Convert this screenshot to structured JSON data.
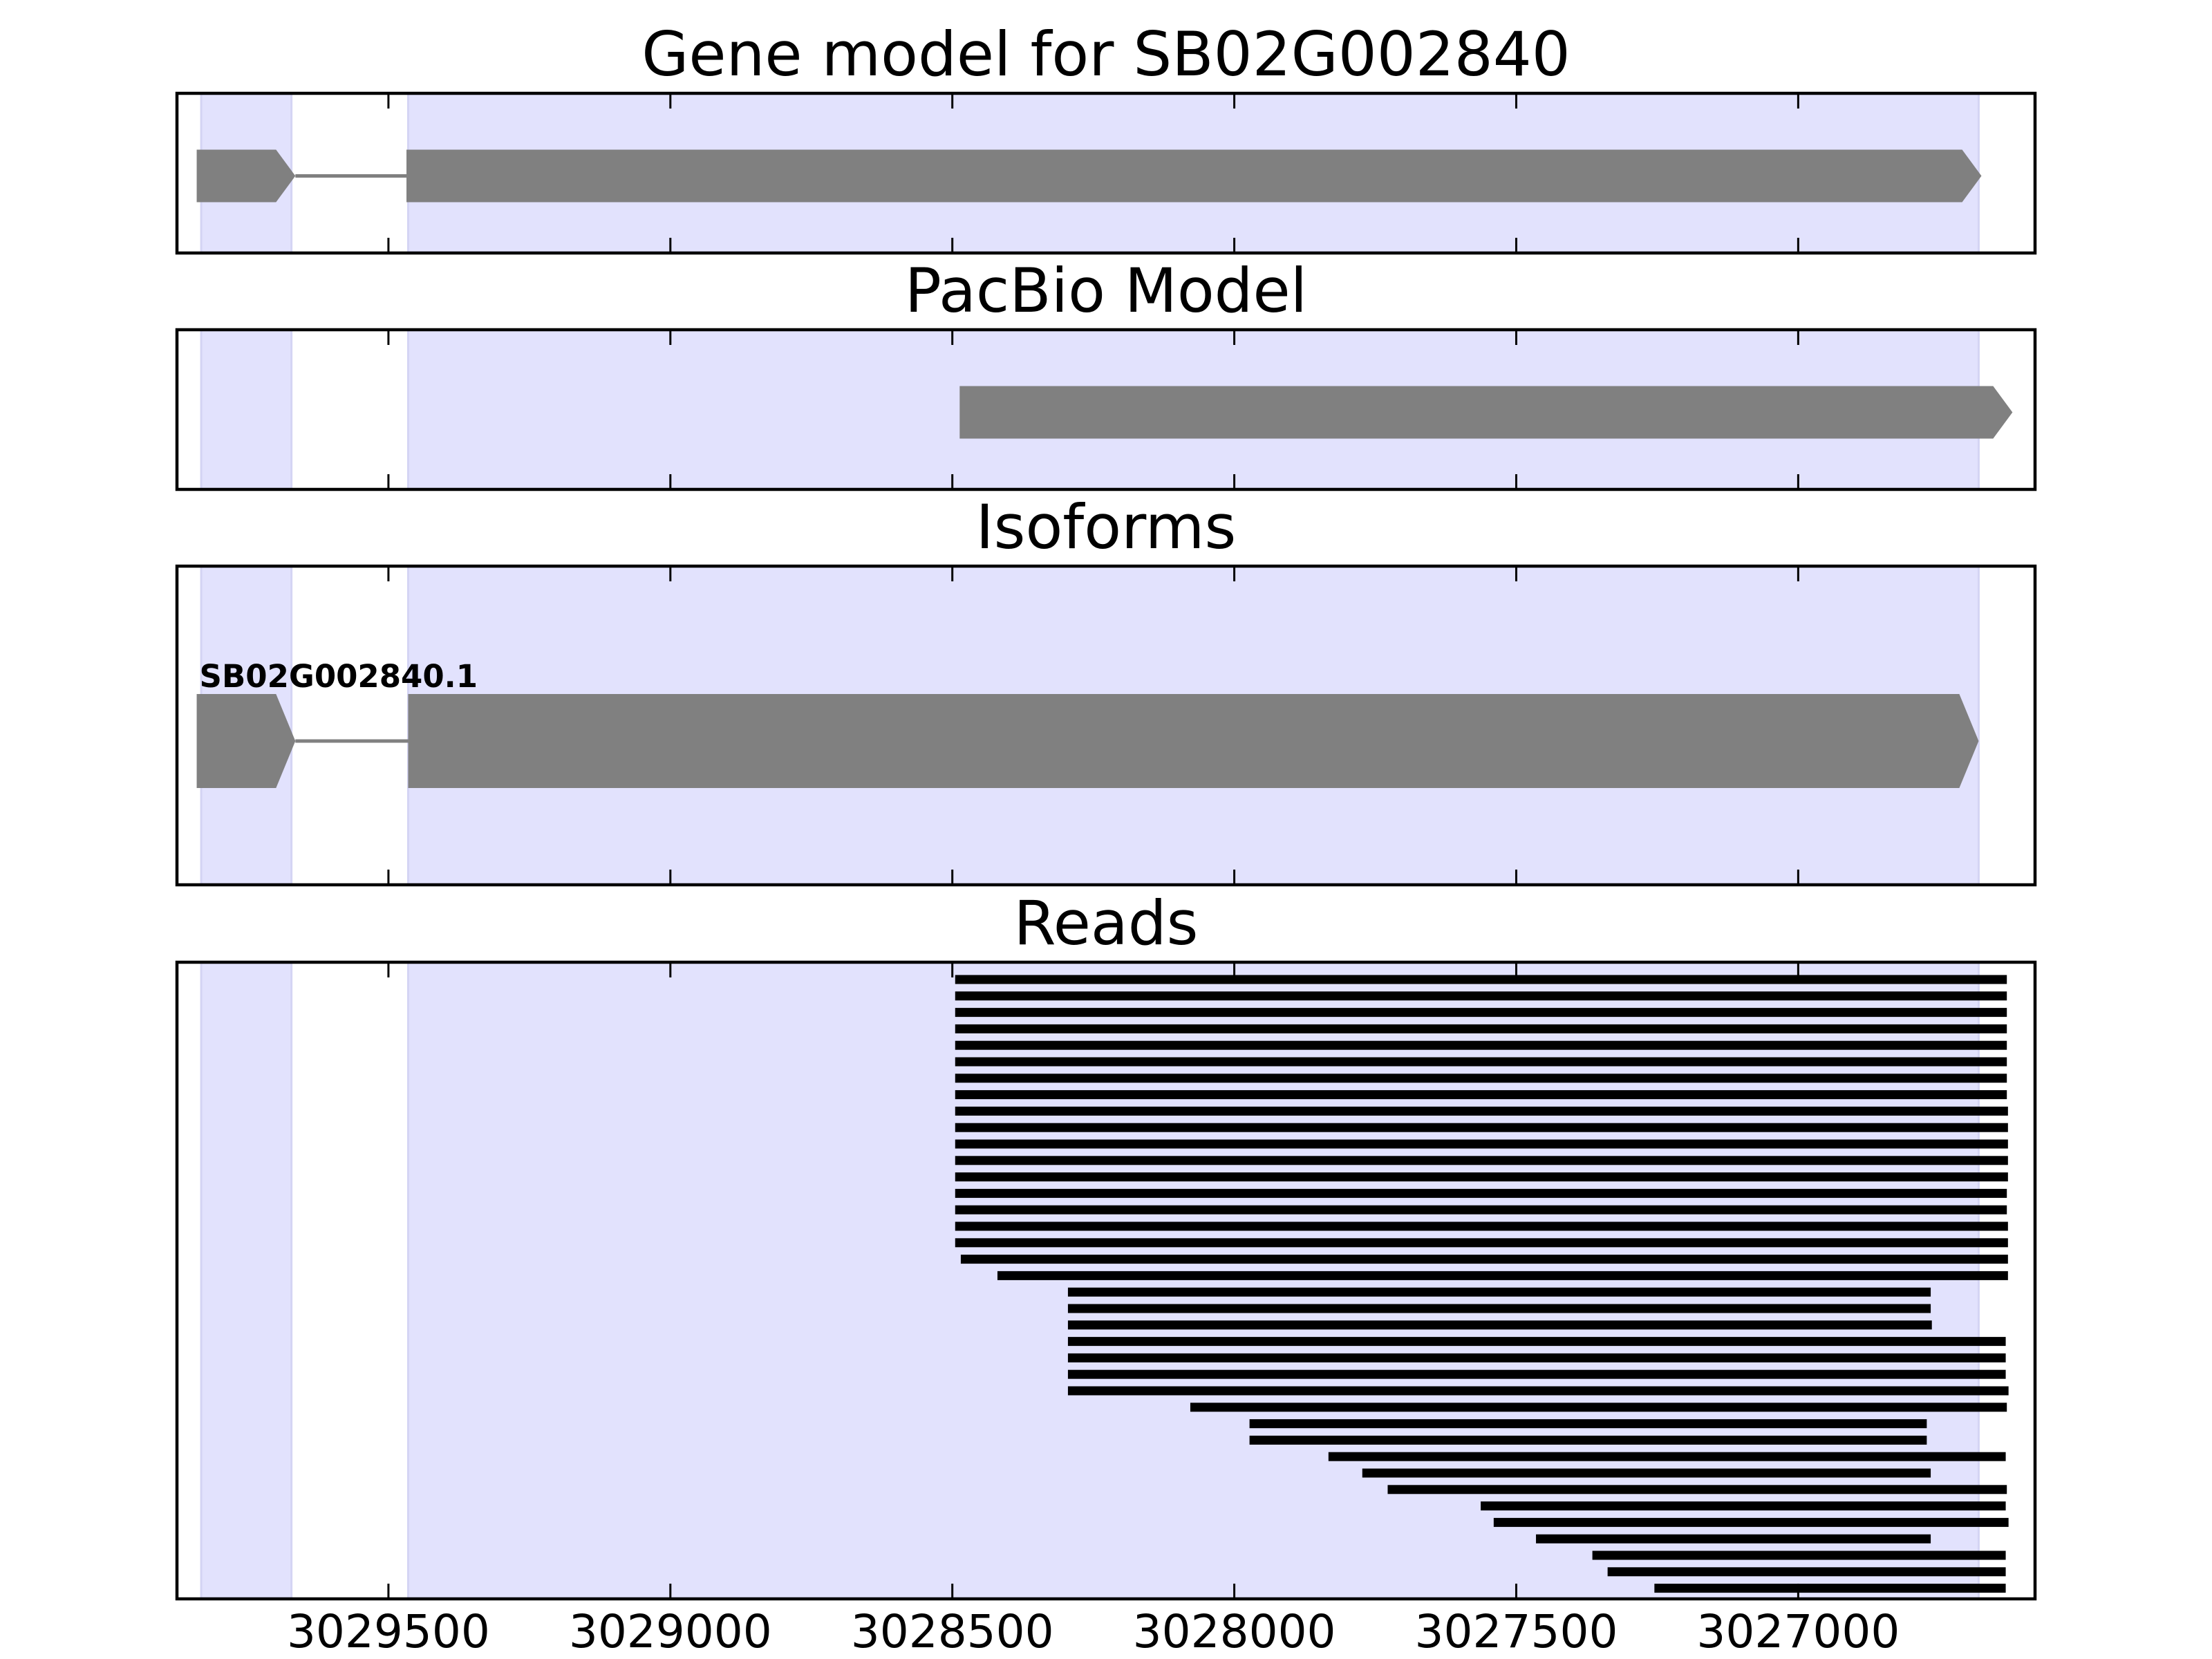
{
  "chart_data": {
    "type": "gene-track",
    "x_axis": {
      "range": [
        3029875,
        3026580
      ],
      "reversed": true,
      "ticks": [
        3029500,
        3029000,
        3028500,
        3028000,
        3027500,
        3027000
      ],
      "tick_labels": [
        "3029500",
        "3029000",
        "3028500",
        "3028000",
        "3027500",
        "3027000"
      ],
      "grid": false
    },
    "exon_shading": {
      "color": "#e2e2fd",
      "regions": [
        [
          3029832,
          3029672
        ],
        [
          3029465,
          3026680
        ]
      ]
    },
    "panels": [
      {
        "id": "gene-model",
        "title": "Gene model for SB02G002840",
        "features": [
          {
            "kind": "exon",
            "start": 3029840,
            "end": 3029665,
            "arrow": true
          },
          {
            "kind": "intron",
            "start": 3029665,
            "end": 3029468
          },
          {
            "kind": "exon",
            "start": 3029468,
            "end": 3026675,
            "arrow": true
          }
        ]
      },
      {
        "id": "pacbio-model",
        "title": "PacBio Model",
        "features": [
          {
            "kind": "exon",
            "start": 3028487,
            "end": 3026620,
            "arrow": true
          }
        ]
      },
      {
        "id": "isoforms",
        "title": "Isoforms",
        "isoform_label": "SB02G002840.1",
        "features": [
          {
            "kind": "exon",
            "start": 3029840,
            "end": 3029665,
            "arrow": true
          },
          {
            "kind": "intron",
            "start": 3029665,
            "end": 3029465
          },
          {
            "kind": "exon",
            "start": 3029465,
            "end": 3026680,
            "arrow": true
          }
        ]
      },
      {
        "id": "reads",
        "title": "Reads",
        "reads": [
          [
            3028495,
            3026630
          ],
          [
            3028495,
            3026630
          ],
          [
            3028495,
            3026630
          ],
          [
            3028495,
            3026630
          ],
          [
            3028495,
            3026630
          ],
          [
            3028495,
            3026630
          ],
          [
            3028495,
            3026630
          ],
          [
            3028495,
            3026630
          ],
          [
            3028495,
            3026628
          ],
          [
            3028495,
            3026628
          ],
          [
            3028495,
            3026628
          ],
          [
            3028495,
            3026628
          ],
          [
            3028495,
            3026628
          ],
          [
            3028495,
            3026630
          ],
          [
            3028495,
            3026630
          ],
          [
            3028495,
            3026628
          ],
          [
            3028495,
            3026628
          ],
          [
            3028485,
            3026628
          ],
          [
            3028420,
            3026628
          ],
          [
            3028295,
            3026765
          ],
          [
            3028295,
            3026765
          ],
          [
            3028295,
            3026763
          ],
          [
            3028295,
            3026632
          ],
          [
            3028295,
            3026632
          ],
          [
            3028295,
            3026632
          ],
          [
            3028295,
            3026627
          ],
          [
            3028078,
            3026630
          ],
          [
            3027973,
            3026772
          ],
          [
            3027973,
            3026772
          ],
          [
            3027833,
            3026632
          ],
          [
            3027773,
            3026765
          ],
          [
            3027728,
            3026630
          ],
          [
            3027563,
            3026632
          ],
          [
            3027540,
            3026627
          ],
          [
            3027465,
            3026765
          ],
          [
            3027365,
            3026632
          ],
          [
            3027338,
            3026632
          ],
          [
            3027255,
            3026632
          ]
        ]
      }
    ]
  }
}
